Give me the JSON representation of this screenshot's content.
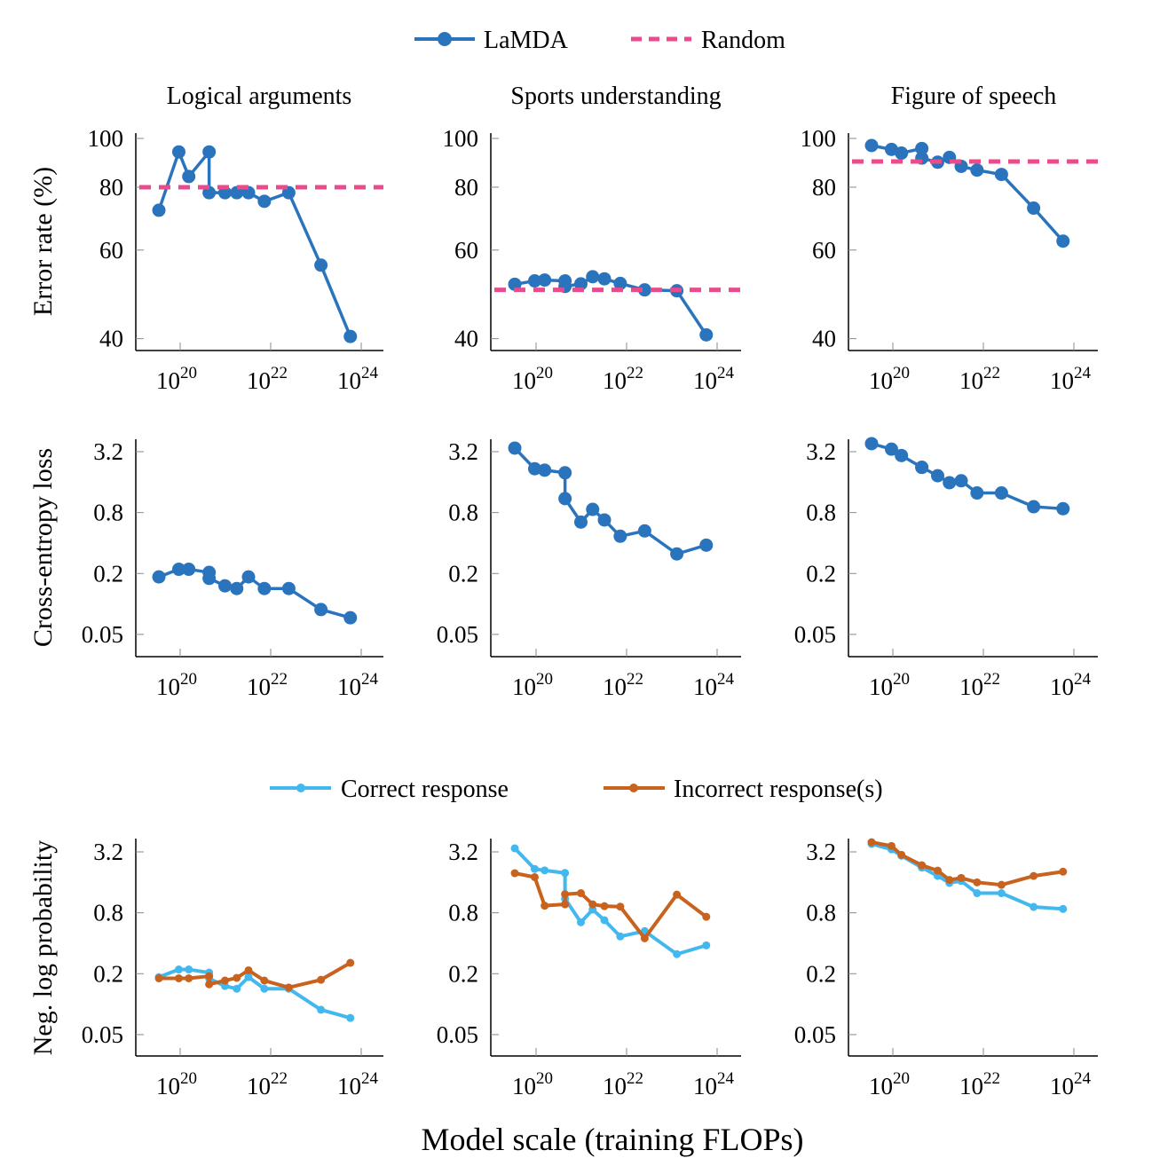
{
  "legend_top": {
    "series": [
      {
        "name": "LaMDA",
        "color": "#2a74be",
        "style": "solid-marker"
      },
      {
        "name": "Random",
        "color": "#ea4b8b",
        "style": "dashed"
      }
    ]
  },
  "legend_bottom": {
    "series": [
      {
        "name": "Correct response",
        "color": "#43b8ef",
        "style": "solid-marker"
      },
      {
        "name": "Incorrect response(s)",
        "color": "#c8621f",
        "style": "solid-marker"
      }
    ]
  },
  "xlabel": "Model scale (training FLOPs)",
  "row_ylabels": [
    "Error rate (%)",
    "Cross-entropy loss",
    "Neg. log probability"
  ],
  "column_titles": [
    "Logical arguments",
    "Sports understanding",
    "Figure of speech"
  ],
  "chart_data": [
    {
      "type": "line",
      "row": 0,
      "col": 0,
      "title": "Logical arguments",
      "ylabel": "Error rate (%)",
      "xscale": "log",
      "yscale": "log",
      "x_log10": [
        19.53,
        19.97,
        20.19,
        20.64,
        20.64,
        20.99,
        21.25,
        21.51,
        21.86,
        22.4,
        23.11,
        23.76
      ],
      "xticks": [
        {
          "base": "10",
          "exp": "20",
          "v": 20
        },
        {
          "base": "10",
          "exp": "22",
          "v": 22
        },
        {
          "base": "10",
          "exp": "24",
          "v": 24
        }
      ],
      "yticks": [
        {
          "label": "100",
          "v": 100
        },
        {
          "label": "80",
          "v": 80
        },
        {
          "label": "60",
          "v": 60
        },
        {
          "label": "40",
          "v": 40
        }
      ],
      "series": [
        {
          "name": "LaMDA",
          "values": [
            72,
            94,
            84,
            94,
            78,
            78,
            78,
            78,
            75,
            78,
            56,
            40.4
          ]
        },
        {
          "name": "Random",
          "constant": 80
        }
      ]
    },
    {
      "type": "line",
      "row": 0,
      "col": 1,
      "title": "Sports understanding",
      "ylabel": "Error rate (%)",
      "xscale": "log",
      "yscale": "log",
      "x_log10": [
        19.53,
        19.97,
        20.19,
        20.64,
        20.64,
        20.99,
        21.25,
        21.51,
        21.86,
        22.4,
        23.11,
        23.76
      ],
      "xticks": [
        {
          "base": "10",
          "exp": "20",
          "v": 20
        },
        {
          "base": "10",
          "exp": "22",
          "v": 22
        },
        {
          "base": "10",
          "exp": "24",
          "v": 24
        }
      ],
      "yticks": [
        {
          "label": "100",
          "v": 100
        },
        {
          "label": "80",
          "v": 80
        },
        {
          "label": "60",
          "v": 60
        },
        {
          "label": "40",
          "v": 40
        }
      ],
      "series": [
        {
          "name": "LaMDA",
          "values": [
            51.3,
            52.1,
            52.3,
            52.1,
            50.8,
            51.4,
            53.1,
            52.6,
            51.5,
            50.0,
            49.8,
            40.7
          ]
        },
        {
          "name": "Random",
          "constant": 50
        }
      ]
    },
    {
      "type": "line",
      "row": 0,
      "col": 2,
      "title": "Figure of speech",
      "ylabel": "Error rate (%)",
      "xscale": "log",
      "yscale": "log",
      "x_log10": [
        19.53,
        19.97,
        20.19,
        20.64,
        20.64,
        20.99,
        21.25,
        21.51,
        21.86,
        22.4,
        23.11,
        23.76
      ],
      "xticks": [
        {
          "base": "10",
          "exp": "20",
          "v": 20
        },
        {
          "base": "10",
          "exp": "22",
          "v": 22
        },
        {
          "base": "10",
          "exp": "24",
          "v": 24
        }
      ],
      "yticks": [
        {
          "label": "100",
          "v": 100
        },
        {
          "label": "80",
          "v": 80
        },
        {
          "label": "60",
          "v": 60
        },
        {
          "label": "40",
          "v": 40
        }
      ],
      "series": [
        {
          "name": "LaMDA",
          "values": [
            96.8,
            95.1,
            93.5,
            95.5,
            91.4,
            89.7,
            91.7,
            88.0,
            86.5,
            84.8,
            72.7,
            62.5
          ]
        },
        {
          "name": "Random",
          "constant": 90
        }
      ]
    },
    {
      "type": "line",
      "row": 1,
      "col": 0,
      "ylabel": "Cross-entropy loss",
      "xscale": "log",
      "yscale": "log",
      "x_log10": [
        19.53,
        19.97,
        20.19,
        20.64,
        20.64,
        20.99,
        21.25,
        21.51,
        21.86,
        22.4,
        23.11,
        23.76
      ],
      "xticks": [
        {
          "base": "10",
          "exp": "20",
          "v": 20
        },
        {
          "base": "10",
          "exp": "22",
          "v": 22
        },
        {
          "base": "10",
          "exp": "24",
          "v": 24
        }
      ],
      "yticks": [
        {
          "label": "3.2",
          "v": 3.2
        },
        {
          "label": "0.8",
          "v": 0.8
        },
        {
          "label": "0.2",
          "v": 0.2
        },
        {
          "label": "0.05",
          "v": 0.05
        }
      ],
      "series": [
        {
          "name": "LaMDA",
          "values": [
            0.185,
            0.22,
            0.22,
            0.205,
            0.179,
            0.151,
            0.142,
            0.185,
            0.142,
            0.142,
            0.088,
            0.073
          ]
        }
      ]
    },
    {
      "type": "line",
      "row": 1,
      "col": 1,
      "ylabel": "Cross-entropy loss",
      "xscale": "log",
      "yscale": "log",
      "x_log10": [
        19.53,
        19.97,
        20.19,
        20.64,
        20.64,
        20.99,
        21.25,
        21.51,
        21.86,
        22.4,
        23.11,
        23.76
      ],
      "xticks": [
        {
          "base": "10",
          "exp": "20",
          "v": 20
        },
        {
          "base": "10",
          "exp": "22",
          "v": 22
        },
        {
          "base": "10",
          "exp": "24",
          "v": 24
        }
      ],
      "yticks": [
        {
          "label": "3.2",
          "v": 3.2
        },
        {
          "label": "0.8",
          "v": 0.8
        },
        {
          "label": "0.2",
          "v": 0.2
        },
        {
          "label": "0.05",
          "v": 0.05
        }
      ],
      "series": [
        {
          "name": "LaMDA",
          "values": [
            3.47,
            2.17,
            2.1,
            1.98,
            1.1,
            0.644,
            0.86,
            0.676,
            0.467,
            0.527,
            0.312,
            0.381
          ]
        }
      ]
    },
    {
      "type": "line",
      "row": 1,
      "col": 2,
      "ylabel": "Cross-entropy loss",
      "xscale": "log",
      "yscale": "log",
      "x_log10": [
        19.53,
        19.97,
        20.19,
        20.64,
        20.64,
        20.99,
        21.25,
        21.51,
        21.86,
        22.4,
        23.11,
        23.76
      ],
      "xticks": [
        {
          "base": "10",
          "exp": "20",
          "v": 20
        },
        {
          "base": "10",
          "exp": "22",
          "v": 22
        },
        {
          "base": "10",
          "exp": "24",
          "v": 24
        }
      ],
      "yticks": [
        {
          "label": "3.2",
          "v": 3.2
        },
        {
          "label": "0.8",
          "v": 0.8
        },
        {
          "label": "0.2",
          "v": 0.2
        },
        {
          "label": "0.05",
          "v": 0.05
        }
      ],
      "series": [
        {
          "name": "LaMDA",
          "values": [
            3.84,
            3.39,
            2.93,
            2.24,
            2.24,
            1.85,
            1.58,
            1.65,
            1.25,
            1.25,
            0.914,
            0.873
          ]
        }
      ]
    },
    {
      "type": "line",
      "row": 2,
      "col": 0,
      "ylabel": "Neg. log probability",
      "xscale": "log",
      "yscale": "log",
      "x_log10": [
        19.53,
        19.97,
        20.19,
        20.64,
        20.64,
        20.99,
        21.25,
        21.51,
        21.86,
        22.4,
        23.11,
        23.76
      ],
      "xticks": [
        {
          "base": "10",
          "exp": "20",
          "v": 20
        },
        {
          "base": "10",
          "exp": "22",
          "v": 22
        },
        {
          "base": "10",
          "exp": "24",
          "v": 24
        }
      ],
      "yticks": [
        {
          "label": "3.2",
          "v": 3.2
        },
        {
          "label": "0.8",
          "v": 0.8
        },
        {
          "label": "0.2",
          "v": 0.2
        },
        {
          "label": "0.05",
          "v": 0.05
        }
      ],
      "series": [
        {
          "name": "Correct response",
          "values": [
            0.185,
            0.22,
            0.22,
            0.205,
            0.179,
            0.151,
            0.142,
            0.185,
            0.142,
            0.142,
            0.088,
            0.073
          ]
        },
        {
          "name": "Incorrect response(s)",
          "values": [
            0.18,
            0.18,
            0.18,
            0.189,
            0.157,
            0.171,
            0.182,
            0.216,
            0.171,
            0.146,
            0.174,
            0.256
          ]
        }
      ]
    },
    {
      "type": "line",
      "row": 2,
      "col": 1,
      "ylabel": "Neg. log probability",
      "xscale": "log",
      "yscale": "log",
      "x_log10": [
        19.53,
        19.97,
        20.19,
        20.64,
        20.64,
        20.99,
        21.25,
        21.51,
        21.86,
        22.4,
        23.11,
        23.76
      ],
      "xticks": [
        {
          "base": "10",
          "exp": "20",
          "v": 20
        },
        {
          "base": "10",
          "exp": "22",
          "v": 22
        },
        {
          "base": "10",
          "exp": "24",
          "v": 24
        }
      ],
      "yticks": [
        {
          "label": "3.2",
          "v": 3.2
        },
        {
          "label": "0.8",
          "v": 0.8
        },
        {
          "label": "0.2",
          "v": 0.2
        },
        {
          "label": "0.05",
          "v": 0.05
        }
      ],
      "series": [
        {
          "name": "Correct response",
          "values": [
            3.47,
            2.17,
            2.1,
            1.98,
            1.1,
            0.644,
            0.86,
            0.676,
            0.467,
            0.527,
            0.312,
            0.381
          ]
        },
        {
          "name": "Incorrect response(s)",
          "values": [
            1.97,
            1.8,
            0.94,
            0.97,
            1.22,
            1.25,
            0.97,
            0.93,
            0.92,
            0.448,
            1.21,
            0.73
          ]
        }
      ]
    },
    {
      "type": "line",
      "row": 2,
      "col": 2,
      "ylabel": "Neg. log probability",
      "xscale": "log",
      "yscale": "log",
      "x_log10": [
        19.53,
        19.97,
        20.19,
        20.64,
        20.64,
        20.99,
        21.25,
        21.51,
        21.86,
        22.4,
        23.11,
        23.76
      ],
      "xticks": [
        {
          "base": "10",
          "exp": "20",
          "v": 20
        },
        {
          "base": "10",
          "exp": "22",
          "v": 22
        },
        {
          "base": "10",
          "exp": "24",
          "v": 24
        }
      ],
      "yticks": [
        {
          "label": "3.2",
          "v": 3.2
        },
        {
          "label": "0.8",
          "v": 0.8
        },
        {
          "label": "0.2",
          "v": 0.2
        },
        {
          "label": "0.05",
          "v": 0.05
        }
      ],
      "series": [
        {
          "name": "Correct response",
          "values": [
            3.84,
            3.39,
            2.93,
            2.24,
            2.24,
            1.85,
            1.58,
            1.65,
            1.25,
            1.25,
            0.914,
            0.873
          ]
        },
        {
          "name": "Incorrect response(s)",
          "values": [
            3.99,
            3.66,
            2.99,
            2.36,
            2.36,
            2.09,
            1.69,
            1.77,
            1.6,
            1.51,
            1.85,
            2.04
          ]
        }
      ]
    }
  ]
}
